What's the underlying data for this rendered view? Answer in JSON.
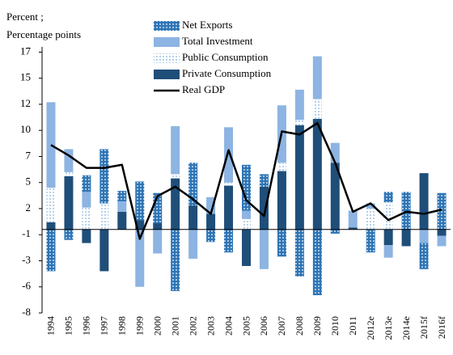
{
  "chart_data": {
    "type": "bar",
    "stacked": true,
    "y_axis_label": [
      "Percent ;",
      "Percentage points"
    ],
    "categories": [
      "1994",
      "1995",
      "1996",
      "1997",
      "1998",
      "1999",
      "2000",
      "2001",
      "2002",
      "2003",
      "2004",
      "2005",
      "2006",
      "2007",
      "2008",
      "2009",
      "2010",
      "2011",
      "2012e",
      "2013e",
      "2014e",
      "2015f",
      "2016f"
    ],
    "series": [
      {
        "name": "Private Consumption",
        "color": "#1f4e79",
        "values": [
          0.7,
          5.1,
          -1.3,
          -4.0,
          1.7,
          0.9,
          0.6,
          4.9,
          2.3,
          1.5,
          4.2,
          -3.5,
          4.1,
          5.6,
          10.0,
          10.6,
          6.4,
          0.2,
          0,
          -1.5,
          -1.6,
          5.4,
          -0.6
        ]
      },
      {
        "name": "Public Consumption",
        "color": "#9dc3e6",
        "pattern": "dots",
        "values": [
          3.3,
          0.4,
          2.1,
          2.5,
          0,
          0,
          0,
          0.4,
          0,
          0,
          0.3,
          1.0,
          0,
          0.8,
          0.5,
          1.9,
          0,
          0,
          2.0,
          2.6,
          0,
          0,
          0
        ]
      },
      {
        "name": "Total Investment",
        "color": "#8db4e2",
        "values": [
          8.2,
          2.2,
          1.5,
          0,
          1.0,
          -5.5,
          -2.3,
          4.6,
          -2.8,
          1.6,
          5.3,
          0.8,
          -3.8,
          5.5,
          2.9,
          4.1,
          1.9,
          1.6,
          0.5,
          -1.2,
          0,
          -1.3,
          -1.0
        ]
      },
      {
        "name": "Net Exports",
        "color": "#2e75b6",
        "pattern": "dots",
        "values": [
          -4.0,
          -1.0,
          1.6,
          5.2,
          1.0,
          3.7,
          2.9,
          -5.9,
          4.1,
          -1.2,
          -2.2,
          4.4,
          1.2,
          -2.6,
          -4.5,
          -6.3,
          -0.4,
          0,
          -2.2,
          1.0,
          3.6,
          -2.5,
          3.5
        ]
      },
      {
        "name": "Real GDP",
        "color": "#000000",
        "type": "line",
        "values": [
          8.1,
          7.1,
          5.9,
          5.9,
          6.2,
          -0.9,
          3.2,
          4.1,
          2.9,
          1.5,
          7.6,
          2.8,
          1.3,
          9.4,
          9.1,
          10.2,
          6.4,
          1.7,
          2.5,
          0.9,
          1.7,
          1.5,
          1.9
        ]
      }
    ],
    "legend_order": [
      3,
      2,
      1,
      0,
      4
    ],
    "ylim": [
      -8,
      17.5
    ],
    "yticks": [
      17,
      {
        "value": 14.5,
        "label": "15"
      },
      12,
      {
        "value": 9.5,
        "label": "10"
      },
      7,
      {
        "value": 4.5,
        "label": "5"
      },
      2,
      {
        "value": -0.5,
        "label": "-1"
      },
      -3,
      {
        "value": -5.5,
        "label": "-6"
      },
      -8
    ]
  }
}
